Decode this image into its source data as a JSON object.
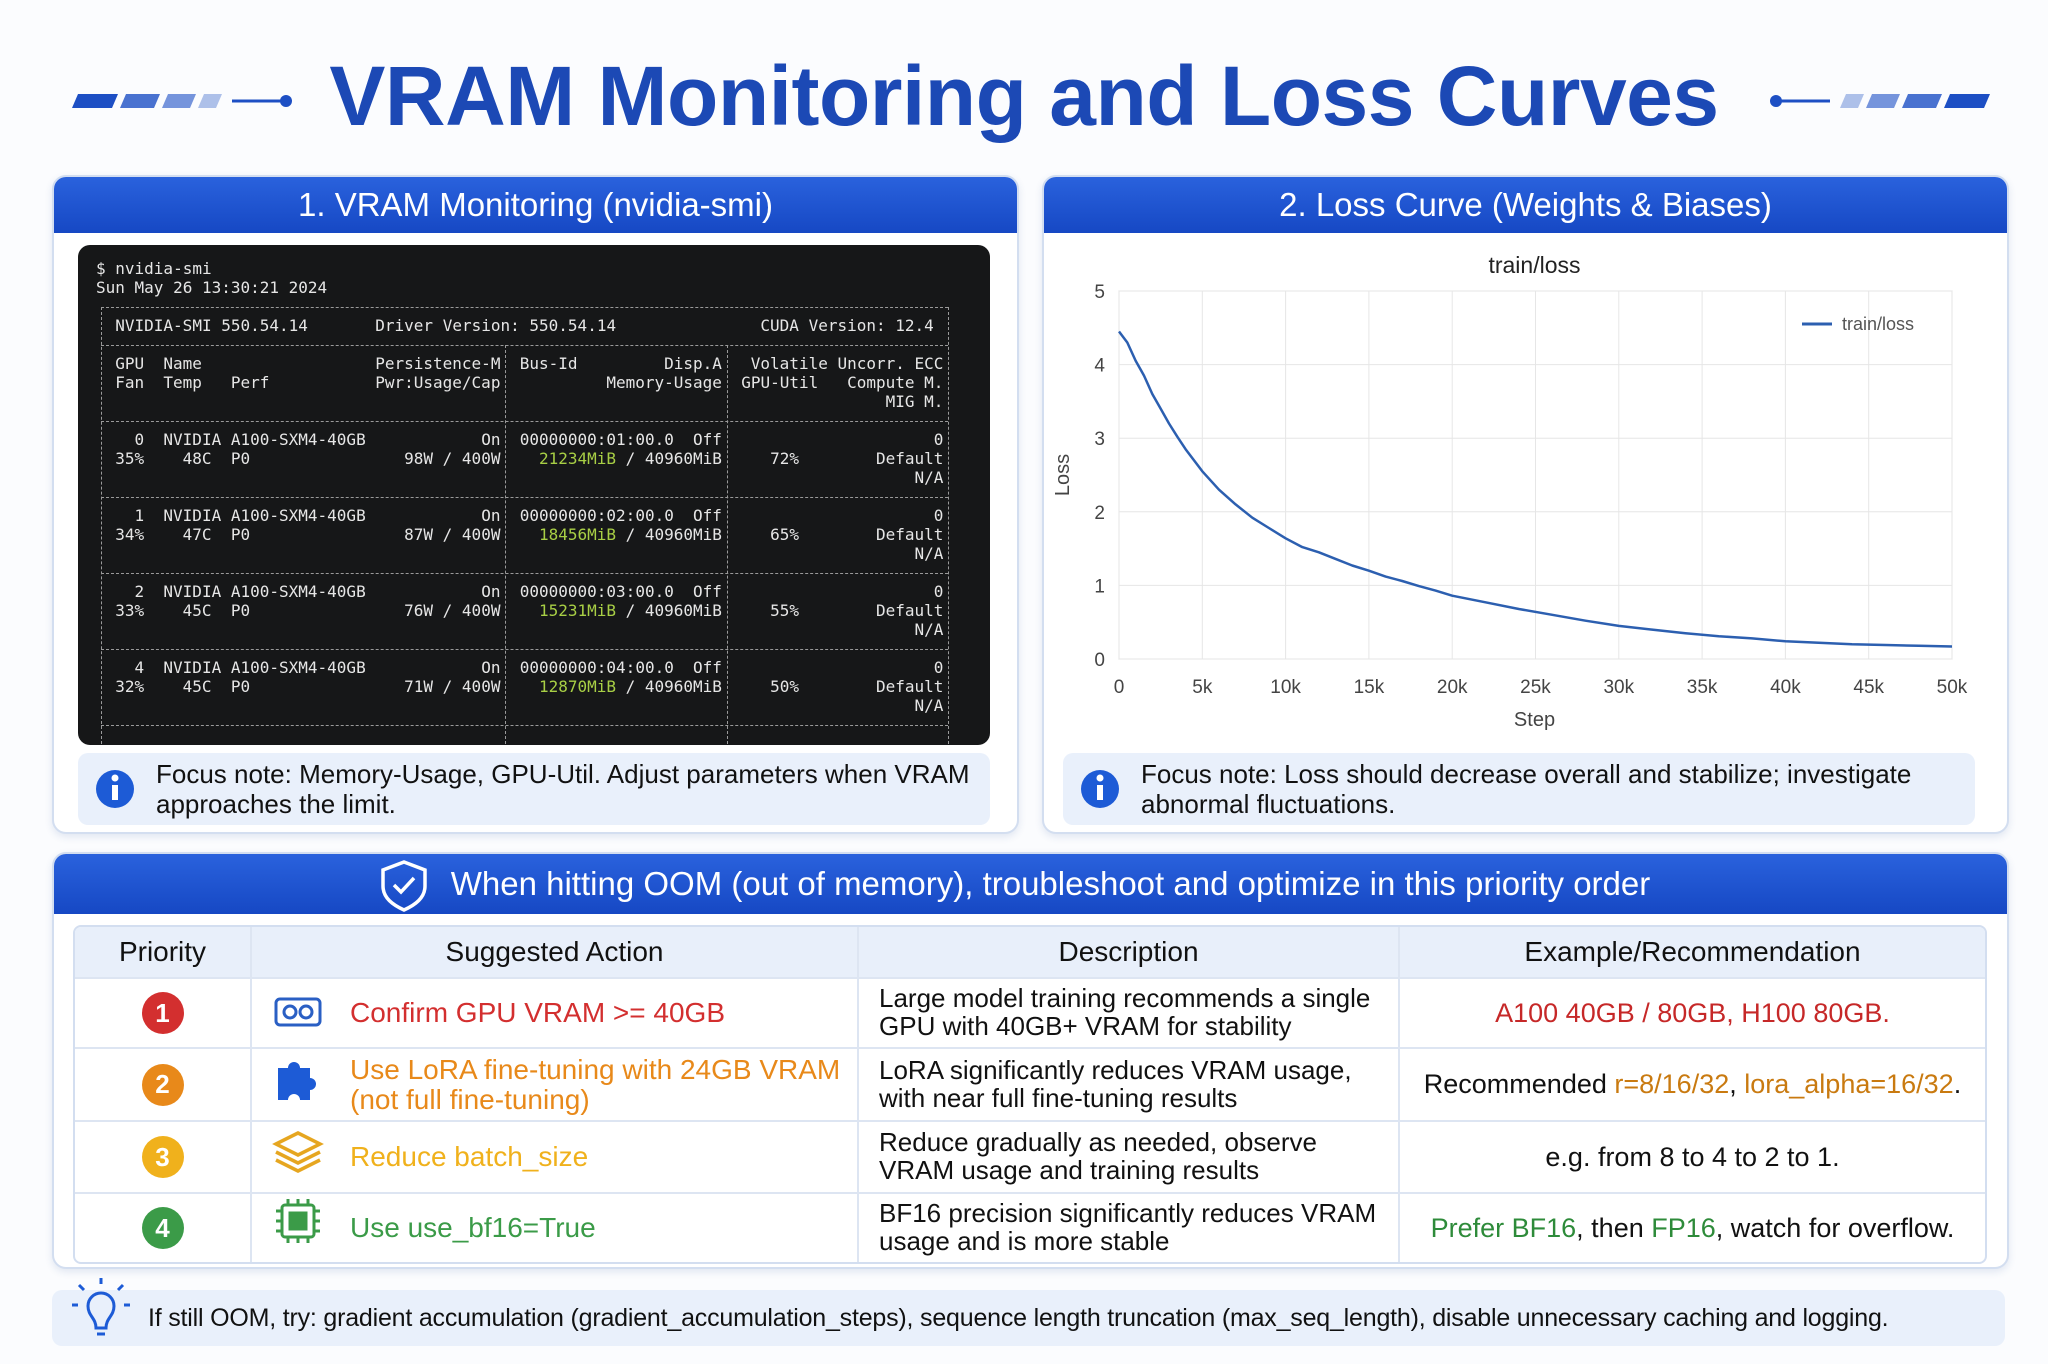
{
  "header": {
    "title": "VRAM Monitoring and Loss Curves"
  },
  "vram_panel": {
    "heading": "1. VRAM Monitoring (nvidia-smi)",
    "terminal": {
      "command": "$ nvidia-smi",
      "timestamp": "Sun May 26 13:30:21 2024",
      "smi_version": "NVIDIA-SMI 550.54.14",
      "driver_version": "Driver Version: 550.54.14",
      "cuda_version": "CUDA Version: 12.4",
      "column_headers": [
        "GPU",
        "Name",
        "Persistence-M",
        "Fan",
        "Temp",
        "Perf",
        "Pwr:Usage/Cap",
        "Bus-Id",
        "Disp.A",
        "Memory-Usage",
        "Volatile Uncorr. ECC",
        "GPU-Util",
        "Compute M.",
        "MIG M."
      ],
      "gpus": [
        {
          "id": "0",
          "name": "NVIDIA A100-SXM4-40GB",
          "persistence": "On",
          "bus_id": "00000000:01:00.0",
          "disp": "Off",
          "ecc": "0",
          "fan": "35%",
          "temp": "48C",
          "perf": "P0",
          "power": "98W / 400W",
          "memory_used": "21234MiB",
          "memory_total": "/ 40960MiB",
          "util": "72%",
          "compute": "Default",
          "mig": "N/A"
        },
        {
          "id": "1",
          "name": "NVIDIA A100-SXM4-40GB",
          "persistence": "On",
          "bus_id": "00000000:02:00.0",
          "disp": "Off",
          "ecc": "0",
          "fan": "34%",
          "temp": "47C",
          "perf": "P0",
          "power": "87W / 400W",
          "memory_used": "18456MiB",
          "memory_total": "/ 40960MiB",
          "util": "65%",
          "compute": "Default",
          "mig": "N/A"
        },
        {
          "id": "2",
          "name": "NVIDIA A100-SXM4-40GB",
          "persistence": "On",
          "bus_id": "00000000:03:00.0",
          "disp": "Off",
          "ecc": "0",
          "fan": "33%",
          "temp": "45C",
          "perf": "P0",
          "power": "76W / 400W",
          "memory_used": "15231MiB",
          "memory_total": "/ 40960MiB",
          "util": "55%",
          "compute": "Default",
          "mig": "N/A"
        },
        {
          "id": "4",
          "name": "NVIDIA A100-SXM4-40GB",
          "persistence": "On",
          "bus_id": "00000000:04:00.0",
          "disp": "Off",
          "ecc": "0",
          "fan": "32%",
          "temp": "45C",
          "perf": "P0",
          "power": "71W / 400W",
          "memory_used": "12870MiB",
          "memory_total": "/ 40960MiB",
          "util": "50%",
          "compute": "Default",
          "mig": "N/A"
        }
      ]
    },
    "focus_note": "Focus note: Memory-Usage, GPU-Util. Adjust parameters when VRAM approaches the limit."
  },
  "loss_panel": {
    "heading": "2. Loss Curve (Weights & Biases)",
    "focus_note": "Focus note: Loss should decrease overall and stabilize; investigate abnormal fluctuations."
  },
  "chart_data": {
    "type": "line",
    "title": "train/loss",
    "x_label": "Step",
    "y_label": "Loss",
    "x": [
      0,
      500,
      1000,
      1500,
      2000,
      2500,
      3000,
      3500,
      4000,
      5000,
      6000,
      7000,
      8000,
      9000,
      10000,
      11000,
      12000,
      13000,
      14000,
      15000,
      16000,
      17000,
      18000,
      19000,
      20000,
      22000,
      24000,
      26000,
      28000,
      30000,
      32000,
      34000,
      36000,
      38000,
      40000,
      42000,
      44000,
      46000,
      48000,
      50000
    ],
    "series": [
      {
        "name": "train/loss",
        "color": "#2c5fb0",
        "values": [
          4.45,
          4.3,
          4.05,
          3.85,
          3.6,
          3.4,
          3.2,
          3.02,
          2.85,
          2.55,
          2.3,
          2.1,
          1.92,
          1.78,
          1.64,
          1.52,
          1.45,
          1.36,
          1.27,
          1.2,
          1.12,
          1.06,
          0.99,
          0.93,
          0.86,
          0.77,
          0.68,
          0.6,
          0.52,
          0.45,
          0.4,
          0.35,
          0.31,
          0.28,
          0.24,
          0.22,
          0.2,
          0.19,
          0.18,
          0.17
        ]
      }
    ],
    "xlim": [
      0,
      50000
    ],
    "ylim": [
      0,
      5
    ],
    "xticks": [
      0,
      {
        "value": 5000,
        "label": "5k"
      },
      {
        "value": 10000,
        "label": "10k"
      },
      {
        "value": 15000,
        "label": "15k"
      },
      {
        "value": 20000,
        "label": "20k"
      },
      {
        "value": 25000,
        "label": "25k"
      },
      {
        "value": 30000,
        "label": "30k"
      },
      {
        "value": 35000,
        "label": "35k"
      },
      {
        "value": 40000,
        "label": "40k"
      },
      {
        "value": 45000,
        "label": "45k"
      },
      {
        "value": 50000,
        "label": "50k"
      }
    ],
    "yticks": [
      0,
      1,
      2,
      3,
      4,
      5
    ],
    "grid": true,
    "legend": "upper right"
  },
  "oom": {
    "banner": "When hitting OOM (out of memory), troubleshoot and optimize in this priority order",
    "columns": [
      "Priority",
      "Suggested Action",
      "Description",
      "Example/Recommendation"
    ],
    "rows": [
      {
        "priority": "1",
        "color": "#d32f2f",
        "action": "Confirm GPU VRAM >= 40GB",
        "description": "Large model training recommends a single GPU with 40GB+ VRAM for stability",
        "example": [
          {
            "text": "A100 40GB / 80GB, H100 80GB.",
            "color": "#c62828"
          }
        ]
      },
      {
        "priority": "2",
        "color": "#e8891a",
        "action": "Use LoRA fine-tuning with 24GB VRAM (not full fine-tuning)",
        "description": "LoRA significantly reduces VRAM usage, with near full fine-tuning results",
        "example": [
          {
            "text": "Recommended ",
            "color": "#111111"
          },
          {
            "text": "r=8/16/32",
            "color": "#c97a10"
          },
          {
            "text": ", ",
            "color": "#111111"
          },
          {
            "text": "lora_alpha=16/32",
            "color": "#c97a10"
          },
          {
            "text": ".",
            "color": "#111111"
          }
        ]
      },
      {
        "priority": "3",
        "color": "#f0b11c",
        "action": "Reduce batch_size",
        "description": "Reduce gradually as needed, observe VRAM usage and training results",
        "example": [
          {
            "text": "e.g. from 8 to 4 to 2 to 1.",
            "color": "#111111"
          }
        ]
      },
      {
        "priority": "4",
        "color": "#3b9b48",
        "action": "Use use_bf16=True",
        "description": "BF16 precision significantly reduces VRAM usage and is more stable",
        "example": [
          {
            "text": "Prefer BF16",
            "color": "#2e8b3a"
          },
          {
            "text": ", then ",
            "color": "#111111"
          },
          {
            "text": "FP16",
            "color": "#2e8b3a"
          },
          {
            "text": ", watch for overflow.",
            "color": "#111111"
          }
        ]
      }
    ]
  },
  "footer": {
    "tip": "If still OOM, try: gradient accumulation (gradient_accumulation_steps), sequence length truncation (max_seq_length), disable unnecessary caching and logging."
  }
}
